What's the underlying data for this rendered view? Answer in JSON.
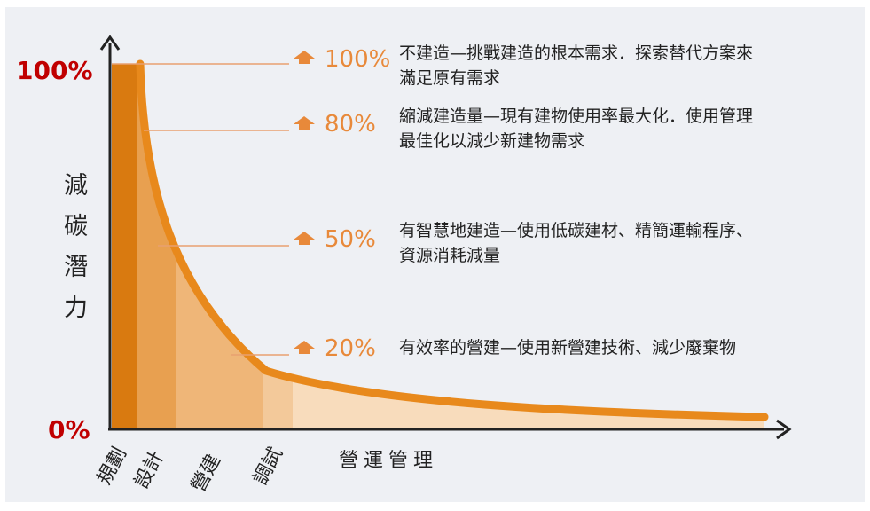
{
  "y_axis": {
    "label_chars": [
      "減",
      "碳",
      "潛",
      "力"
    ],
    "top_label": "100%",
    "bottom_label": "0%"
  },
  "x_axis": {
    "stages": [
      "規劃",
      "設計",
      "營建",
      "調試"
    ],
    "operations_label": "營運管理"
  },
  "levels": [
    {
      "pct": "100%",
      "lines": [
        "不建造—挑戰建造的根本需求．探索替代方案來",
        "滿足原有需求"
      ]
    },
    {
      "pct": "80%",
      "lines": [
        "縮減建造量—現有建物使用率最大化．使用管理",
        "最佳化以減少新建物需求"
      ]
    },
    {
      "pct": "50%",
      "lines": [
        "有智慧地建造—使用低碳建材、精簡運輸程序、",
        "資源消耗減量"
      ]
    },
    {
      "pct": "20%",
      "lines": [
        "有效率的營建—使用新營建技術、減少廢棄物"
      ]
    }
  ],
  "colors": {
    "curve": "#e8891c",
    "stage1": "#d97a10",
    "stage2": "#e8a050",
    "stage3": "#efb678",
    "stage4": "#f3c99a",
    "stage5": "#f8dcbc",
    "pct_text": "#e8893a",
    "axis_red": "#c00000"
  }
}
